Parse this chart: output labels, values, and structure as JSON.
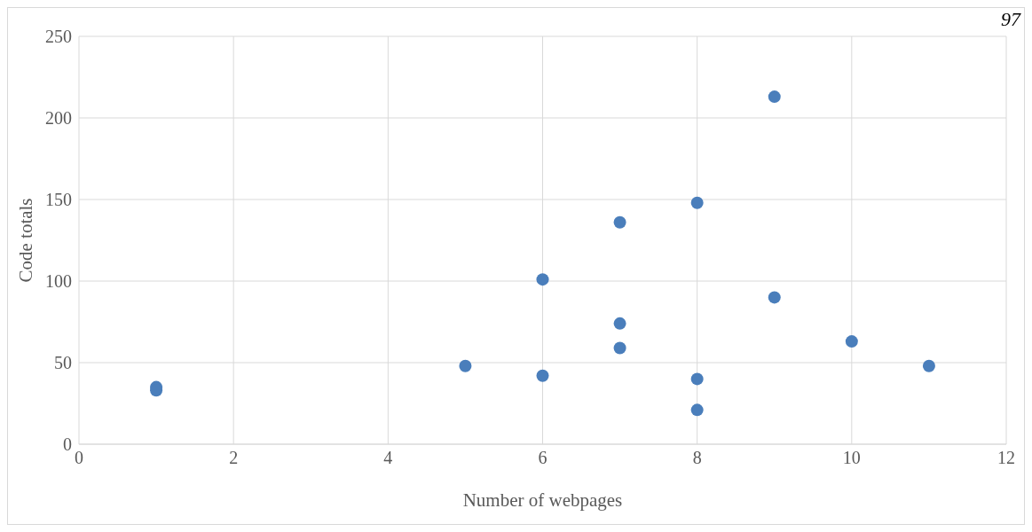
{
  "chart_data": {
    "type": "scatter",
    "xlabel": "Number of webpages",
    "ylabel": "Code totals",
    "annotations": [
      "97"
    ],
    "x": [
      1,
      1,
      5,
      6,
      6,
      7,
      7,
      7,
      8,
      8,
      8,
      9,
      9,
      10,
      11
    ],
    "series": [
      {
        "color": "#4a7ebb",
        "values": [
          35,
          33,
          48,
          101,
          42,
          136,
          74,
          59,
          148,
          40,
          21,
          213,
          90,
          63,
          48
        ]
      }
    ],
    "xlim": [
      0,
      12
    ],
    "xticks": [
      0,
      2,
      4,
      6,
      8,
      10,
      12
    ],
    "ylim": [
      0,
      250
    ],
    "yticks": [
      0,
      50,
      100,
      150,
      200,
      250
    ],
    "grid": true,
    "marker": "circle"
  }
}
